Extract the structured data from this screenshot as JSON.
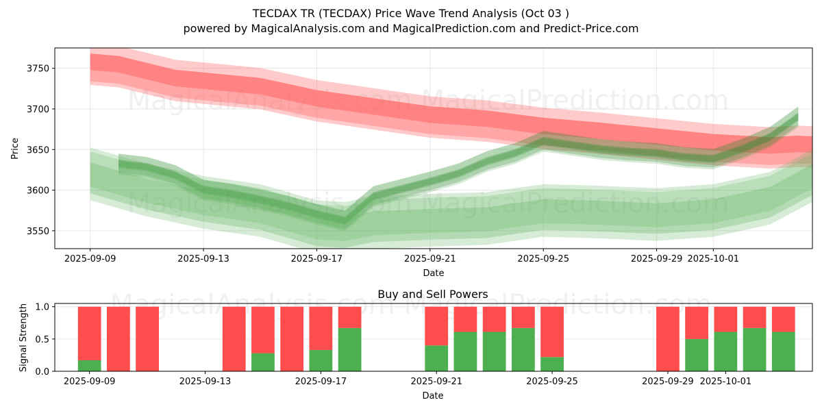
{
  "chart_data": [
    {
      "type": "line",
      "title": "TECDAX TR (TECDAX) Price Wave Trend Analysis (Oct 03 )",
      "subtitle": "powered by MagicalAnalysis.com and MagicalPrediction.com and Predict-Price.com",
      "xlabel": "Date",
      "ylabel": "Price",
      "ylim": [
        3528,
        3775
      ],
      "xlim": [
        "2025-09-07T18:00",
        "2025-10-04T12:00"
      ],
      "x_ticks": [
        "2025-09-09",
        "2025-09-13",
        "2025-09-17",
        "2025-09-21",
        "2025-09-25",
        "2025-09-29",
        "2025-10-01"
      ],
      "y_ticks": [
        3550,
        3600,
        3650,
        3700,
        3750
      ],
      "grid": true,
      "watermark": "MagicalAnalysis.com    MagicalPrediction.com",
      "series": [
        {
          "name": "sell-trend-band",
          "color": "#ff6666",
          "x": [
            0,
            1,
            3,
            6,
            8,
            10,
            12,
            14,
            16,
            18,
            20,
            22,
            24,
            25,
            25.5
          ],
          "values": [
            3755,
            3752,
            3735,
            3725,
            3710,
            3700,
            3690,
            3685,
            3676,
            3670,
            3663,
            3656,
            3652,
            3654,
            3653
          ],
          "half_width": 17
        },
        {
          "name": "buy-trend-upper",
          "color": "#2e8b2e",
          "x": [
            1,
            2,
            3,
            4,
            5,
            6,
            7,
            8,
            9,
            10,
            12,
            13,
            14,
            15,
            16,
            17,
            18,
            19,
            20,
            21,
            22,
            23,
            24,
            25
          ],
          "values": [
            3632,
            3628,
            3618,
            3600,
            3595,
            3588,
            3580,
            3570,
            3562,
            3592,
            3610,
            3620,
            3635,
            3645,
            3660,
            3655,
            3650,
            3647,
            3645,
            3640,
            3638,
            3650,
            3665,
            3690
          ],
          "half_width": 9
        },
        {
          "name": "buy-trend-lower",
          "color": "#5fb35f",
          "x": [
            0,
            1,
            2,
            4,
            6,
            8,
            9,
            10,
            12,
            14,
            16,
            18,
            20,
            22,
            24,
            25.5
          ],
          "values": [
            3620,
            3610,
            3600,
            3585,
            3575,
            3555,
            3553,
            3560,
            3563,
            3565,
            3575,
            3573,
            3570,
            3575,
            3590,
            3618
          ],
          "half_width": 27
        }
      ]
    },
    {
      "type": "bar",
      "title": "Buy and Sell Powers",
      "xlabel": "Date",
      "ylabel": "Signal Strength",
      "ylim": [
        0,
        1.05
      ],
      "y_ticks": [
        0.0,
        0.5,
        1.0
      ],
      "x_ticks": [
        "2025-09-09",
        "2025-09-13",
        "2025-09-17",
        "2025-09-21",
        "2025-09-25",
        "2025-09-29",
        "2025-10-01"
      ],
      "categories": [
        "2025-09-09",
        "2025-09-10",
        "2025-09-11",
        "2025-09-14",
        "2025-09-15",
        "2025-09-16",
        "2025-09-17",
        "2025-09-18",
        "2025-09-21",
        "2025-09-22",
        "2025-09-23",
        "2025-09-24",
        "2025-09-25",
        "2025-09-29",
        "2025-09-30",
        "2025-10-01",
        "2025-10-02",
        "2025-10-03"
      ],
      "series": [
        {
          "name": "Buy",
          "color": "#4caf50",
          "values": [
            0.17,
            0,
            0,
            0,
            0.28,
            0,
            0.33,
            0.67,
            0.4,
            0.61,
            0.61,
            0.67,
            0.22,
            0,
            0.5,
            0.61,
            0.67,
            0.61
          ]
        },
        {
          "name": "Sell",
          "color": "#ff4d4d",
          "values": [
            0.83,
            1.0,
            1.0,
            1.0,
            0.72,
            1.0,
            0.67,
            0.33,
            0.6,
            0.39,
            0.39,
            0.33,
            0.78,
            1.0,
            0.5,
            0.39,
            0.33,
            0.39
          ]
        }
      ]
    }
  ]
}
